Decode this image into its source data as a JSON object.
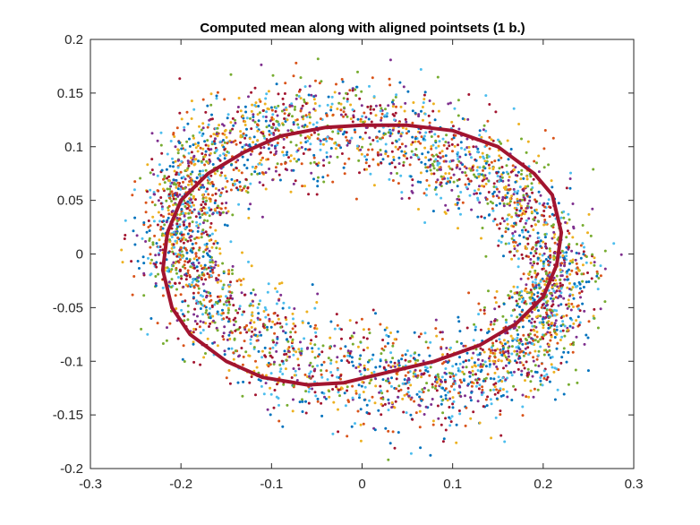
{
  "chart_data": {
    "type": "scatter",
    "title": "Computed mean along with aligned pointsets (1 b.)",
    "xlabel": "",
    "ylabel": "",
    "xlim": [
      -0.3,
      0.3
    ],
    "ylim": [
      -0.2,
      0.2
    ],
    "x_ticks": [
      "-0.3",
      "-0.2",
      "-0.1",
      "0",
      "0.1",
      "0.2",
      "0.3"
    ],
    "y_ticks": [
      "0.2",
      "0.15",
      "0.1",
      "0.05",
      "0",
      "-0.05",
      "-0.1",
      "-0.15",
      "-0.2"
    ],
    "grid": false,
    "legend": "none",
    "point_colors": [
      "#0072BD",
      "#D95319",
      "#EDB120",
      "#7E2F8E",
      "#77AC30",
      "#4DBEEE",
      "#A2142F"
    ],
    "mean_curve": {
      "color": "#A2142F",
      "x": [
        0.05,
        0.1,
        0.15,
        0.19,
        0.21,
        0.22,
        0.215,
        0.2,
        0.17,
        0.13,
        0.08,
        0.03,
        -0.02,
        -0.06,
        -0.11,
        -0.15,
        -0.19,
        -0.21,
        -0.22,
        -0.215,
        -0.2,
        -0.17,
        -0.13,
        -0.09,
        -0.04,
        0.0,
        0.05
      ],
      "y": [
        0.12,
        0.115,
        0.1,
        0.075,
        0.055,
        0.02,
        -0.01,
        -0.04,
        -0.065,
        -0.085,
        -0.1,
        -0.11,
        -0.12,
        -0.122,
        -0.115,
        -0.1,
        -0.075,
        -0.05,
        -0.015,
        0.02,
        0.05,
        0.075,
        0.095,
        0.11,
        0.118,
        0.12,
        0.12
      ]
    }
  }
}
